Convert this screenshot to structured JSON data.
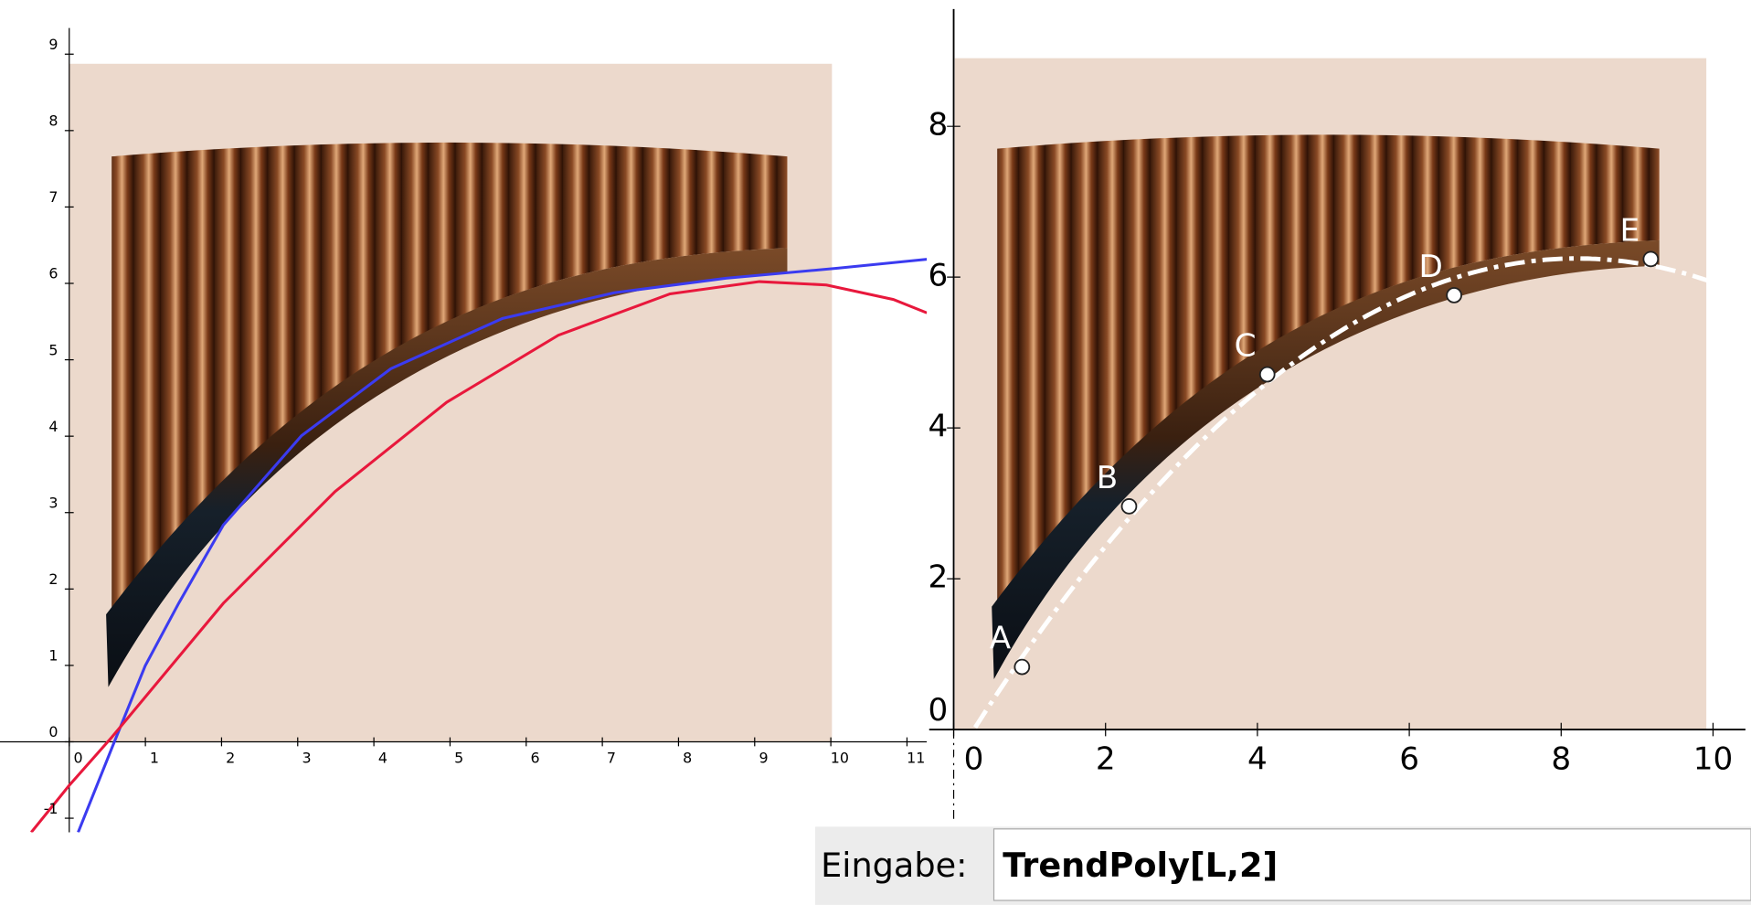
{
  "left_graph": {
    "xticks": [
      0,
      1,
      2,
      3,
      4,
      5,
      6,
      7,
      8,
      9,
      10,
      11
    ],
    "yticks": [
      -1,
      0,
      1,
      2,
      3,
      4,
      5,
      6,
      7,
      8,
      9
    ]
  },
  "right_graph": {
    "xticks": [
      0,
      2,
      4,
      6,
      8,
      10
    ],
    "yticks": [
      0,
      2,
      4,
      6,
      8
    ],
    "points": [
      {
        "label": "A",
        "x": 0.9,
        "y": 0.83
      },
      {
        "label": "B",
        "x": 2.31,
        "y": 2.96
      },
      {
        "label": "C",
        "x": 4.13,
        "y": 4.71
      },
      {
        "label": "D",
        "x": 6.59,
        "y": 5.76
      },
      {
        "label": "E",
        "x": 9.18,
        "y": 6.24
      }
    ]
  },
  "input_bar": {
    "label": "Eingabe:",
    "value": "TrendPoly[L,2]"
  }
}
